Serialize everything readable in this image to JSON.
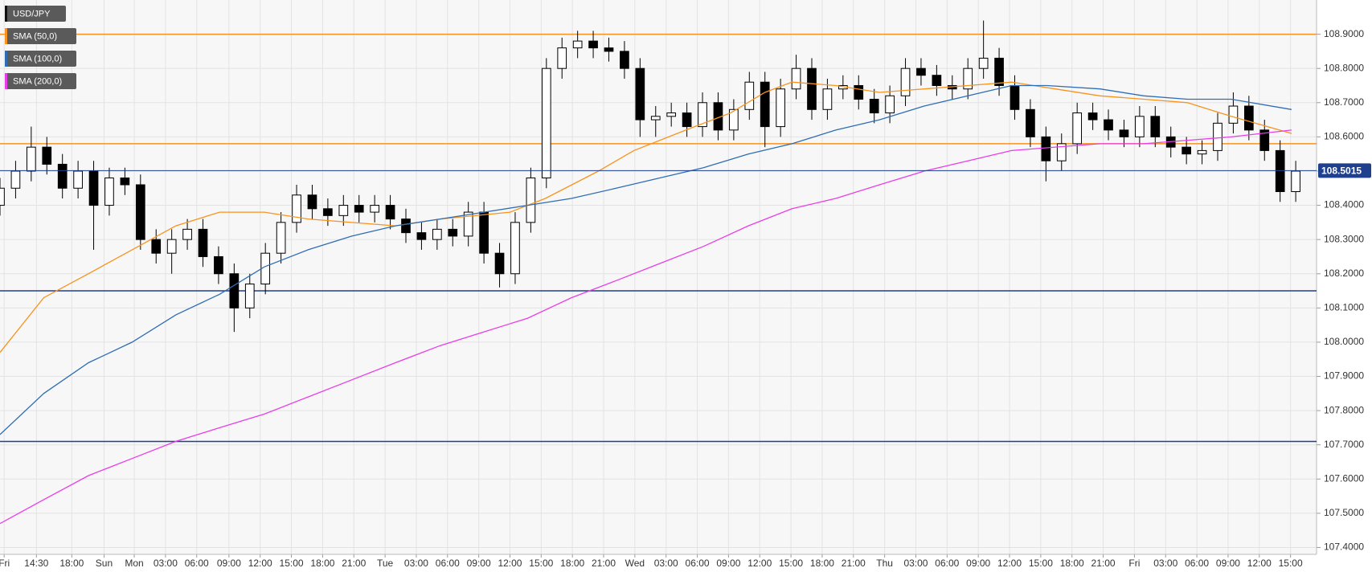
{
  "chart_data": {
    "type": "candlestick",
    "x": [
      0,
      1.5,
      3,
      4.5,
      6,
      7.5,
      9,
      10.5,
      12,
      13.5,
      15,
      16.5,
      18,
      19.5,
      21,
      22.5,
      24,
      25.5,
      27,
      28.5,
      30,
      31.5,
      33,
      34.5,
      36,
      37.5,
      39,
      40.5,
      42,
      43.5,
      45,
      46.5,
      48,
      49.5,
      51,
      52.5,
      54,
      55.5,
      57,
      58.5,
      60,
      61.5,
      63,
      64.5,
      66,
      67.5,
      69,
      70.5,
      72,
      73.5,
      75,
      76.5,
      78,
      79.5,
      81,
      82.5,
      84,
      85.5,
      87,
      88.5,
      90,
      91.5,
      93,
      94.5,
      96,
      97.5,
      99,
      100.5,
      102,
      103.5,
      105,
      106.5,
      108,
      109.5,
      111,
      112.5,
      114,
      115.5,
      117,
      118.5,
      120,
      121.5,
      123,
      124.5
    ],
    "series": [
      {
        "name": "USD/JPY",
        "type": "candlestick",
        "color": "#000000",
        "open": [
          108.4,
          108.45,
          108.5,
          108.57,
          108.52,
          108.45,
          108.5,
          108.4,
          108.48,
          108.46,
          108.3,
          108.26,
          108.3,
          108.33,
          108.25,
          108.2,
          108.1,
          108.17,
          108.26,
          108.35,
          108.43,
          108.39,
          108.37,
          108.4,
          108.38,
          108.4,
          108.36,
          108.32,
          108.3,
          108.33,
          108.31,
          108.38,
          108.26,
          108.2,
          108.35,
          108.48,
          108.8,
          108.86,
          108.88,
          108.86,
          108.85,
          108.8,
          108.65,
          108.66,
          108.67,
          108.63,
          108.7,
          108.62,
          108.68,
          108.76,
          108.63,
          108.74,
          108.8,
          108.68,
          108.74,
          108.75,
          108.71,
          108.67,
          108.72,
          108.8,
          108.78,
          108.75,
          108.74,
          108.8,
          108.83,
          108.75,
          108.68,
          108.6,
          108.53,
          108.58,
          108.67,
          108.65,
          108.62,
          108.6,
          108.66,
          108.6,
          108.57,
          108.55,
          108.56,
          108.64,
          108.69,
          108.62,
          108.56,
          108.44
        ],
        "high": [
          108.48,
          108.53,
          108.63,
          108.6,
          108.55,
          108.53,
          108.53,
          108.51,
          108.51,
          108.49,
          108.33,
          108.33,
          108.36,
          108.36,
          108.28,
          108.23,
          108.2,
          108.29,
          108.38,
          108.46,
          108.46,
          108.42,
          108.43,
          108.43,
          108.43,
          108.43,
          108.39,
          108.35,
          108.36,
          108.36,
          108.41,
          108.41,
          108.29,
          108.38,
          108.51,
          108.83,
          108.89,
          108.91,
          108.91,
          108.89,
          108.88,
          108.83,
          108.69,
          108.7,
          108.7,
          108.73,
          108.73,
          108.71,
          108.79,
          108.79,
          108.77,
          108.84,
          108.83,
          108.77,
          108.78,
          108.78,
          108.74,
          108.75,
          108.83,
          108.83,
          108.81,
          108.78,
          108.83,
          108.94,
          108.86,
          108.78,
          108.71,
          108.63,
          108.61,
          108.7,
          108.7,
          108.68,
          108.65,
          108.69,
          108.69,
          108.63,
          108.6,
          108.59,
          108.67,
          108.73,
          108.72,
          108.65,
          108.59,
          108.53
        ],
        "low": [
          108.37,
          108.42,
          108.47,
          108.49,
          108.42,
          108.42,
          108.27,
          108.37,
          108.43,
          108.27,
          108.23,
          108.2,
          108.27,
          108.22,
          108.17,
          108.03,
          108.07,
          108.14,
          108.23,
          108.32,
          108.36,
          108.34,
          108.34,
          108.35,
          108.35,
          108.33,
          108.29,
          108.27,
          108.27,
          108.28,
          108.28,
          108.23,
          108.16,
          108.17,
          108.32,
          108.45,
          108.77,
          108.83,
          108.83,
          108.82,
          108.77,
          108.6,
          108.6,
          108.63,
          108.6,
          108.6,
          108.59,
          108.59,
          108.65,
          108.57,
          108.6,
          108.71,
          108.65,
          108.65,
          108.71,
          108.68,
          108.64,
          108.64,
          108.69,
          108.75,
          108.72,
          108.71,
          108.71,
          108.77,
          108.72,
          108.65,
          108.57,
          108.47,
          108.5,
          108.55,
          108.62,
          108.59,
          108.57,
          108.57,
          108.57,
          108.54,
          108.52,
          108.52,
          108.53,
          108.61,
          108.59,
          108.53,
          108.41,
          108.41
        ],
        "close": [
          108.45,
          108.5,
          108.57,
          108.52,
          108.45,
          108.5,
          108.4,
          108.48,
          108.46,
          108.3,
          108.26,
          108.3,
          108.33,
          108.25,
          108.2,
          108.1,
          108.17,
          108.26,
          108.35,
          108.43,
          108.39,
          108.37,
          108.4,
          108.38,
          108.4,
          108.36,
          108.32,
          108.3,
          108.33,
          108.31,
          108.38,
          108.26,
          108.2,
          108.35,
          108.48,
          108.8,
          108.86,
          108.88,
          108.86,
          108.85,
          108.8,
          108.65,
          108.66,
          108.67,
          108.63,
          108.7,
          108.62,
          108.68,
          108.76,
          108.63,
          108.74,
          108.8,
          108.68,
          108.74,
          108.75,
          108.71,
          108.67,
          108.72,
          108.8,
          108.78,
          108.75,
          108.74,
          108.8,
          108.83,
          108.75,
          108.68,
          108.6,
          108.53,
          108.58,
          108.67,
          108.65,
          108.62,
          108.6,
          108.66,
          108.6,
          108.57,
          108.55,
          108.56,
          108.64,
          108.69,
          108.62,
          108.56,
          108.44,
          108.5
        ]
      },
      {
        "name": "SMA (50,0)",
        "type": "line",
        "color": "#f7931e",
        "x": [
          0,
          4.2,
          8.5,
          12.7,
          16.9,
          21.1,
          25.4,
          29.6,
          33.8,
          38,
          42.3,
          49,
          52.4,
          57.5,
          60.9,
          65.9,
          70.2,
          73.5,
          76.1,
          80.3,
          84.5,
          88.8,
          93,
          97.2,
          101.4,
          105.7,
          109.9,
          114.1,
          118.3,
          124.1
        ],
        "values": [
          107.97,
          108.13,
          108.2,
          108.27,
          108.34,
          108.38,
          108.38,
          108.36,
          108.35,
          108.34,
          108.36,
          108.38,
          108.42,
          108.5,
          108.56,
          108.62,
          108.67,
          108.73,
          108.76,
          108.75,
          108.73,
          108.74,
          108.75,
          108.76,
          108.74,
          108.72,
          108.71,
          108.7,
          108.66,
          108.61
        ]
      },
      {
        "name": "SMA (100,0)",
        "type": "line",
        "color": "#2f6db5",
        "x": [
          0,
          4.2,
          8.5,
          12.7,
          16.9,
          21.1,
          25.4,
          29.6,
          33.8,
          38,
          42.3,
          46.5,
          50.7,
          54.9,
          59.2,
          63.4,
          67.6,
          71.9,
          76.1,
          80.3,
          84.5,
          88.8,
          93,
          97.2,
          100.6,
          105.7,
          109.9,
          114.1,
          118.3,
          124.1
        ],
        "values": [
          107.73,
          107.85,
          107.94,
          108.0,
          108.08,
          108.14,
          108.22,
          108.27,
          108.31,
          108.34,
          108.36,
          108.38,
          108.4,
          108.42,
          108.45,
          108.48,
          108.51,
          108.55,
          108.58,
          108.62,
          108.65,
          108.69,
          108.72,
          108.75,
          108.75,
          108.74,
          108.72,
          108.71,
          108.71,
          108.68
        ]
      },
      {
        "name": "SMA (200,0)",
        "type": "line",
        "color": "#e83ee8",
        "x": [
          0,
          4.2,
          8.5,
          12.7,
          16.9,
          21.1,
          25.4,
          29.6,
          33.8,
          38,
          42.3,
          46.5,
          50.7,
          54.9,
          59.2,
          63.4,
          67.6,
          71.9,
          76.1,
          80.3,
          84.5,
          88.8,
          93,
          97.2,
          101.4,
          105.7,
          109.9,
          114.1,
          118.3,
          124.1
        ],
        "values": [
          107.47,
          107.54,
          107.61,
          107.66,
          107.71,
          107.75,
          107.79,
          107.84,
          107.89,
          107.94,
          107.99,
          108.03,
          108.07,
          108.13,
          108.18,
          108.23,
          108.28,
          108.34,
          108.39,
          108.42,
          108.46,
          108.5,
          108.53,
          108.56,
          108.57,
          108.58,
          108.58,
          108.59,
          108.6,
          108.62
        ]
      }
    ],
    "levels": [
      {
        "value": 108.9,
        "color": "#f7931e"
      },
      {
        "value": 108.58,
        "color": "#f7931e"
      },
      {
        "value": 108.15,
        "color": "#1f3f8f"
      },
      {
        "value": 107.71,
        "color": "#1f3f8f"
      }
    ],
    "last_price": 108.5015,
    "last_price_color": "#1f3f8f",
    "xlim": [
      0,
      126.5
    ],
    "ylim": [
      107.38,
      109.0
    ],
    "yticks": [
      {
        "value": 107.4,
        "label": "107.4000"
      },
      {
        "value": 107.5,
        "label": "107.5000"
      },
      {
        "value": 107.6,
        "label": "107.6000"
      },
      {
        "value": 107.7,
        "label": "107.7000"
      },
      {
        "value": 107.8,
        "label": "107.8000"
      },
      {
        "value": 107.9,
        "label": "107.9000"
      },
      {
        "value": 108.0,
        "label": "108.0000"
      },
      {
        "value": 108.1,
        "label": "108.1000"
      },
      {
        "value": 108.2,
        "label": "108.2000"
      },
      {
        "value": 108.3,
        "label": "108.3000"
      },
      {
        "value": 108.4,
        "label": "108.4000"
      },
      {
        "value": 108.5,
        "label": "108.5000"
      },
      {
        "value": 108.6,
        "label": "108.6000"
      },
      {
        "value": 108.7,
        "label": "108.7000"
      },
      {
        "value": 108.8,
        "label": "108.8000"
      },
      {
        "value": 108.9,
        "label": "108.9000"
      }
    ],
    "xticks": [
      {
        "value": 0.4,
        "label": "Fri"
      },
      {
        "value": 3.5,
        "label": "14:30"
      },
      {
        "value": 6.9,
        "label": "18:00"
      },
      {
        "value": 10,
        "label": "Sun"
      },
      {
        "value": 12.9,
        "label": "Mon"
      },
      {
        "value": 15.9,
        "label": "03:00"
      },
      {
        "value": 18.9,
        "label": "06:00"
      },
      {
        "value": 22,
        "label": "09:00"
      },
      {
        "value": 25,
        "label": "12:00"
      },
      {
        "value": 28,
        "label": "15:00"
      },
      {
        "value": 31,
        "label": "18:00"
      },
      {
        "value": 34,
        "label": "21:00"
      },
      {
        "value": 37,
        "label": "Tue"
      },
      {
        "value": 40,
        "label": "03:00"
      },
      {
        "value": 43,
        "label": "06:00"
      },
      {
        "value": 46,
        "label": "09:00"
      },
      {
        "value": 49,
        "label": "12:00"
      },
      {
        "value": 52,
        "label": "15:00"
      },
      {
        "value": 55,
        "label": "18:00"
      },
      {
        "value": 58,
        "label": "21:00"
      },
      {
        "value": 61,
        "label": "Wed"
      },
      {
        "value": 64,
        "label": "03:00"
      },
      {
        "value": 67,
        "label": "06:00"
      },
      {
        "value": 70,
        "label": "09:00"
      },
      {
        "value": 73,
        "label": "12:00"
      },
      {
        "value": 76,
        "label": "15:00"
      },
      {
        "value": 79,
        "label": "18:00"
      },
      {
        "value": 82,
        "label": "21:00"
      },
      {
        "value": 85,
        "label": "Thu"
      },
      {
        "value": 88,
        "label": "03:00"
      },
      {
        "value": 91,
        "label": "06:00"
      },
      {
        "value": 94,
        "label": "09:00"
      },
      {
        "value": 97,
        "label": "12:00"
      },
      {
        "value": 100,
        "label": "15:00"
      },
      {
        "value": 103,
        "label": "18:00"
      },
      {
        "value": 106,
        "label": "21:00"
      },
      {
        "value": 109,
        "label": "Fri"
      },
      {
        "value": 112,
        "label": "03:00"
      },
      {
        "value": 115,
        "label": "06:00"
      },
      {
        "value": 118,
        "label": "09:00"
      },
      {
        "value": 121,
        "label": "12:00"
      },
      {
        "value": 124,
        "label": "15:00"
      }
    ],
    "grid": true
  }
}
